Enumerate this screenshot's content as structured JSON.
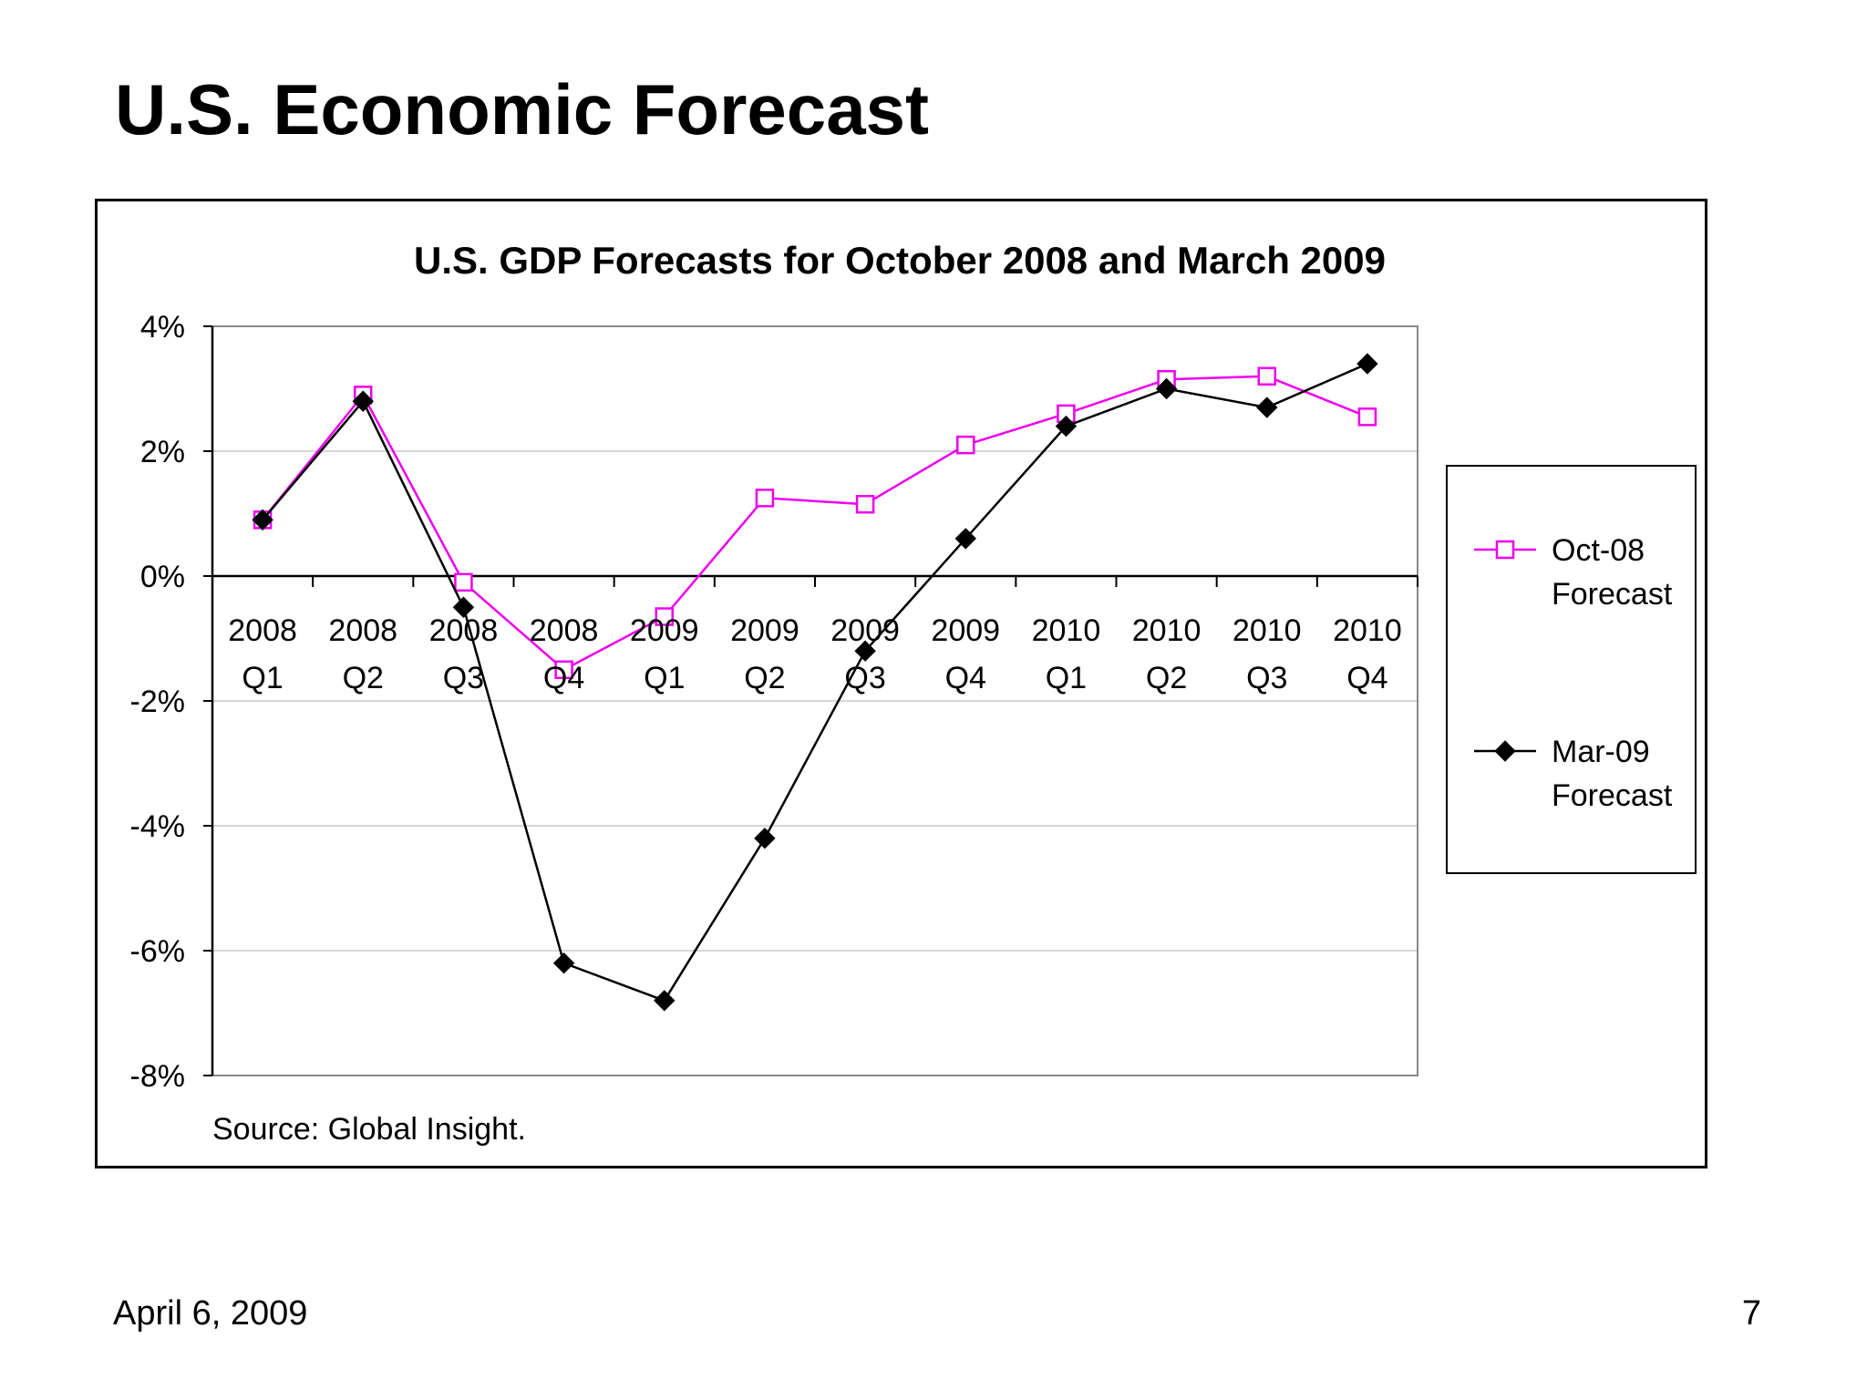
{
  "slide": {
    "title": "U.S. Economic Forecast",
    "date": "April 6, 2009",
    "page_number": "7"
  },
  "chart_data": {
    "type": "line",
    "title": "U.S. GDP Forecasts for October 2008 and March 2009",
    "source_note": "Source: Global Insight.",
    "categories": [
      [
        "2008",
        "Q1"
      ],
      [
        "2008",
        "Q2"
      ],
      [
        "2008",
        "Q3"
      ],
      [
        "2008",
        "Q4"
      ],
      [
        "2009",
        "Q1"
      ],
      [
        "2009",
        "Q2"
      ],
      [
        "2009",
        "Q3"
      ],
      [
        "2009",
        "Q4"
      ],
      [
        "2010",
        "Q1"
      ],
      [
        "2010",
        "Q2"
      ],
      [
        "2010",
        "Q3"
      ],
      [
        "2010",
        "Q4"
      ]
    ],
    "y_ticks": [
      "4%",
      "2%",
      "0%",
      "-2%",
      "-4%",
      "-6%",
      "-8%"
    ],
    "y_tick_values": [
      4,
      2,
      0,
      -2,
      -4,
      -6,
      -8
    ],
    "ylim": [
      -8,
      4
    ],
    "grid": true,
    "legend_position": "right",
    "series": [
      {
        "name": [
          "Oct-08",
          "Forecast"
        ],
        "color": "#ee00ee",
        "marker": "open-square",
        "values": [
          0.9,
          2.9,
          -0.1,
          -1.5,
          -0.65,
          1.25,
          1.15,
          2.1,
          2.6,
          3.15,
          3.2,
          2.55
        ]
      },
      {
        "name": [
          "Mar-09",
          "Forecast"
        ],
        "color": "#000000",
        "marker": "filled-diamond",
        "values": [
          0.9,
          2.8,
          -0.5,
          -6.2,
          -6.8,
          -4.2,
          -1.2,
          0.6,
          2.4,
          3.0,
          2.7,
          3.4
        ]
      }
    ]
  }
}
